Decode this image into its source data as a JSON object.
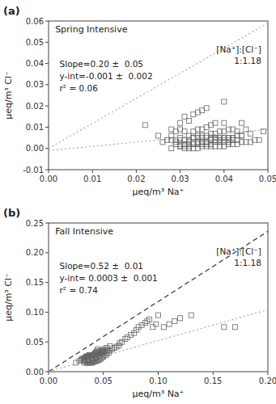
{
  "chart_data": [
    {
      "type": "scatter",
      "title": "Spring Intensive",
      "panel_label": "(a)",
      "x_label": "μeq/m³ Na⁺",
      "y_label": "μeq/m³ Cl⁻",
      "annotations": [
        "Slope=0.20 ±  0.05",
        "y-int=-0.001 ±  0.002",
        "r² = 0.06",
        "[Na⁺]:[Cl⁻]\n1:1.18"
      ],
      "xlim": [
        0.0,
        0.05
      ],
      "ylim": [
        -0.01,
        0.06
      ],
      "xticks": [
        {
          "value": 0.0,
          "label": "0.00"
        },
        0.01,
        0.02,
        0.03,
        0.04,
        0.05
      ],
      "yticks": [
        -0.01,
        {
          "value": 0.0,
          "label": "0.00"
        },
        0.01,
        0.02,
        0.03,
        0.04,
        0.05,
        0.06
      ],
      "series": [
        {
          "type": "scatter",
          "color": "#666666",
          "marker": "square",
          "x": [
            0.022,
            0.025,
            0.026,
            0.027,
            0.028,
            0.028,
            0.028,
            0.029,
            0.029,
            0.03,
            0.03,
            0.03,
            0.03,
            0.031,
            0.031,
            0.031,
            0.031,
            0.032,
            0.032,
            0.032,
            0.032,
            0.033,
            0.033,
            0.033,
            0.033,
            0.033,
            0.034,
            0.034,
            0.034,
            0.034,
            0.034,
            0.035,
            0.035,
            0.035,
            0.035,
            0.035,
            0.036,
            0.036,
            0.036,
            0.036,
            0.036,
            0.037,
            0.037,
            0.037,
            0.037,
            0.038,
            0.038,
            0.038,
            0.038,
            0.039,
            0.039,
            0.039,
            0.04,
            0.04,
            0.04,
            0.04,
            0.04,
            0.041,
            0.041,
            0.041,
            0.042,
            0.042,
            0.042,
            0.043,
            0.043,
            0.044,
            0.044,
            0.044,
            0.045,
            0.045,
            0.046,
            0.046,
            0.047,
            0.048,
            0.049,
            0.028,
            0.029,
            0.03,
            0.031,
            0.032,
            0.033,
            0.034,
            0.035,
            0.036,
            0.037,
            0.038,
            0.039,
            0.04,
            0.041,
            0.042,
            0.043,
            0.044,
            0.029,
            0.03,
            0.031,
            0.032,
            0.033,
            0.034,
            0.035,
            0.036,
            0.037,
            0.038,
            0.039,
            0.04,
            0.041,
            0.042,
            0.03,
            0.031,
            0.032,
            0.033,
            0.034,
            0.035,
            0.036,
            0.037,
            0.038,
            0.039,
            0.04,
            0.041,
            0.042,
            0.043
          ],
          "values": [
            0.011,
            0.006,
            0.003,
            0.004,
            0.0,
            0.006,
            0.009,
            0.003,
            0.008,
            0.001,
            0.005,
            0.009,
            0.012,
            0.0,
            0.004,
            0.008,
            0.015,
            0.0,
            0.003,
            0.006,
            0.013,
            0.0,
            0.002,
            0.005,
            0.008,
            0.016,
            0.0,
            0.003,
            0.006,
            0.009,
            0.017,
            0.001,
            0.003,
            0.006,
            0.009,
            0.018,
            0.001,
            0.003,
            0.006,
            0.01,
            0.019,
            0.001,
            0.004,
            0.007,
            0.011,
            0.001,
            0.004,
            0.007,
            0.012,
            0.001,
            0.004,
            0.008,
            0.001,
            0.005,
            0.008,
            0.012,
            0.022,
            0.002,
            0.005,
            0.009,
            0.002,
            0.005,
            0.009,
            0.002,
            0.008,
            0.003,
            0.006,
            0.012,
            0.003,
            0.009,
            0.003,
            0.007,
            0.004,
            0.004,
            0.008,
            0.004,
            0.004,
            0.004,
            0.004,
            0.004,
            0.005,
            0.005,
            0.005,
            0.005,
            0.005,
            0.005,
            0.005,
            0.005,
            0.005,
            0.005,
            0.006,
            0.006,
            0.002,
            0.002,
            0.002,
            0.002,
            0.003,
            0.003,
            0.003,
            0.003,
            0.004,
            0.004,
            0.004,
            0.004,
            0.004,
            0.004,
            0.001,
            0.001,
            0.001,
            0.002,
            0.002,
            0.002,
            0.002,
            0.002,
            0.003,
            0.003,
            0.003,
            0.003,
            0.004,
            0.004
          ]
        },
        {
          "type": "line",
          "color": "#aaaaaa",
          "line_style": "dotted",
          "x": [
            0.0,
            0.05
          ],
          "values": [
            0.0,
            0.059
          ]
        },
        {
          "type": "line",
          "color": "#aaaaaa",
          "line_style": "dotted",
          "x": [
            0.0,
            0.05
          ],
          "values": [
            -0.001,
            0.009
          ]
        }
      ]
    },
    {
      "type": "scatter",
      "title": "Fall Intensive",
      "panel_label": "(b)",
      "x_label": "μeq/m³ Na⁺",
      "y_label": "μeq/m³ Cl⁻",
      "annotations": [
        "Slope=0.52 ±  0.01",
        "y-int= 0.0003 ±  0.001",
        "r² = 0.74",
        "[Na⁺]:[Cl⁻]\n1:1.18"
      ],
      "xlim": [
        0.0,
        0.2
      ],
      "ylim": [
        0.0,
        0.25
      ],
      "xticks": [
        {
          "value": 0.0,
          "label": "0.00"
        },
        0.05,
        {
          "value": 0.1,
          "label": "0.10"
        },
        0.15,
        {
          "value": 0.2,
          "label": "0.20"
        }
      ],
      "yticks": [
        {
          "value": 0.0,
          "label": "0.00"
        },
        0.05,
        {
          "value": 0.1,
          "label": "0.10"
        },
        0.15,
        {
          "value": 0.2,
          "label": "0.20"
        },
        0.25
      ],
      "series": [
        {
          "type": "scatter",
          "color": "#666666",
          "marker": "square",
          "x": [
            0.025,
            0.028,
            0.03,
            0.032,
            0.033,
            0.033,
            0.034,
            0.034,
            0.035,
            0.035,
            0.035,
            0.035,
            0.036,
            0.036,
            0.036,
            0.037,
            0.037,
            0.037,
            0.038,
            0.038,
            0.038,
            0.039,
            0.039,
            0.039,
            0.04,
            0.04,
            0.04,
            0.041,
            0.041,
            0.041,
            0.042,
            0.042,
            0.042,
            0.043,
            0.043,
            0.043,
            0.044,
            0.044,
            0.044,
            0.045,
            0.045,
            0.045,
            0.046,
            0.046,
            0.047,
            0.047,
            0.048,
            0.048,
            0.049,
            0.05,
            0.05,
            0.052,
            0.053,
            0.055,
            0.056,
            0.058,
            0.06,
            0.062,
            0.064,
            0.065,
            0.067,
            0.07,
            0.072,
            0.075,
            0.078,
            0.08,
            0.082,
            0.085,
            0.088,
            0.09,
            0.092,
            0.095,
            0.098,
            0.1,
            0.105,
            0.11,
            0.115,
            0.12,
            0.13,
            0.16,
            0.17,
            0.03,
            0.031,
            0.032,
            0.033,
            0.034,
            0.035,
            0.036,
            0.037,
            0.038,
            0.039,
            0.04,
            0.042,
            0.043,
            0.045,
            0.047,
            0.049,
            0.051,
            0.053,
            0.056,
            0.033,
            0.034,
            0.035,
            0.036,
            0.037,
            0.038,
            0.039,
            0.04,
            0.041,
            0.042,
            0.043,
            0.044,
            0.045,
            0.046,
            0.047,
            0.048,
            0.049,
            0.05,
            0.052,
            0.054
          ],
          "values": [
            0.015,
            0.018,
            0.02,
            0.018,
            0.015,
            0.02,
            0.018,
            0.025,
            0.015,
            0.018,
            0.022,
            0.026,
            0.015,
            0.02,
            0.025,
            0.016,
            0.022,
            0.028,
            0.015,
            0.018,
            0.022,
            0.016,
            0.02,
            0.025,
            0.015,
            0.02,
            0.025,
            0.017,
            0.022,
            0.028,
            0.017,
            0.023,
            0.03,
            0.018,
            0.024,
            0.032,
            0.018,
            0.025,
            0.035,
            0.02,
            0.028,
            0.038,
            0.02,
            0.028,
            0.022,
            0.03,
            0.022,
            0.032,
            0.025,
            0.025,
            0.035,
            0.028,
            0.03,
            0.032,
            0.035,
            0.038,
            0.04,
            0.042,
            0.044,
            0.048,
            0.05,
            0.055,
            0.058,
            0.062,
            0.065,
            0.07,
            0.075,
            0.078,
            0.082,
            0.085,
            0.088,
            0.075,
            0.08,
            0.095,
            0.075,
            0.08,
            0.085,
            0.09,
            0.095,
            0.075,
            0.075,
            0.02,
            0.022,
            0.022,
            0.023,
            0.024,
            0.025,
            0.025,
            0.026,
            0.027,
            0.028,
            0.028,
            0.03,
            0.031,
            0.033,
            0.035,
            0.036,
            0.038,
            0.04,
            0.043,
            0.02,
            0.021,
            0.022,
            0.023,
            0.023,
            0.024,
            0.025,
            0.025,
            0.026,
            0.027,
            0.027,
            0.028,
            0.029,
            0.03,
            0.03,
            0.031,
            0.032,
            0.033,
            0.034,
            0.036
          ]
        },
        {
          "type": "line",
          "color": "#333333",
          "line_style": "dashed",
          "x": [
            0.0,
            0.2
          ],
          "values": [
            0.0,
            0.236
          ]
        },
        {
          "type": "line",
          "color": "#aaaaaa",
          "line_style": "dotted",
          "x": [
            0.0,
            0.2
          ],
          "values": [
            0.0003,
            0.1043
          ]
        }
      ]
    }
  ]
}
